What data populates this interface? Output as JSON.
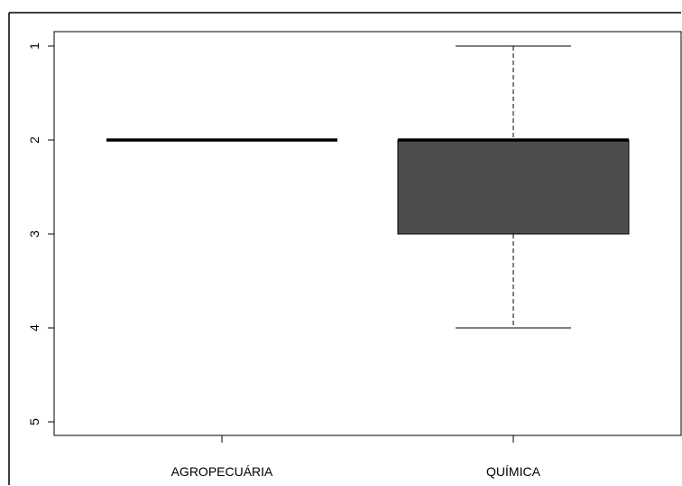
{
  "chart_data": {
    "type": "boxplot",
    "title": "",
    "xlabel": "",
    "ylabel": "",
    "y_axis_reversed": true,
    "ylim": [
      1,
      5
    ],
    "yticks": [
      "1",
      "2",
      "3",
      "4",
      "5"
    ],
    "grid": false,
    "categories": [
      "AGROPECUÁRIA",
      "QUÍMICA"
    ],
    "boxes": [
      {
        "category": "AGROPECUÁRIA",
        "whisker_low": 2,
        "q1": 2,
        "median": 2,
        "q3": 2,
        "whisker_high": 2,
        "fill": "#4d4d4d"
      },
      {
        "category": "QUÍMICA",
        "whisker_low": 1,
        "q1": 2,
        "median": 2,
        "q3": 3,
        "whisker_high": 4,
        "fill": "#4d4d4d"
      }
    ]
  }
}
